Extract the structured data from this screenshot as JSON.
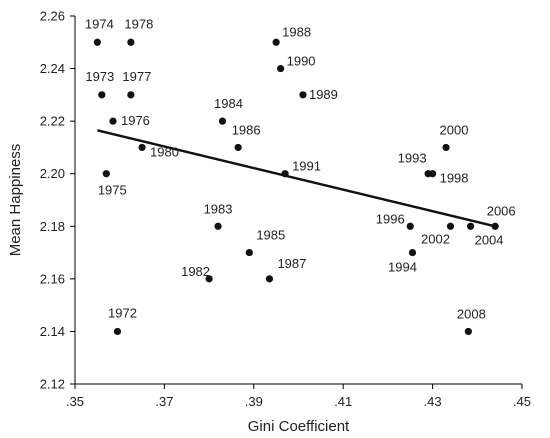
{
  "chart_data": {
    "type": "scatter",
    "xlabel": "Gini Coefficient",
    "ylabel": "Mean Happiness",
    "xlim": [
      0.35,
      0.45
    ],
    "ylim": [
      2.12,
      2.26
    ],
    "x_ticks": [
      0.35,
      0.37,
      0.39,
      0.41,
      0.43,
      0.45
    ],
    "x_tick_labels": [
      ".35",
      ".37",
      ".39",
      ".41",
      ".43",
      ".45"
    ],
    "y_ticks": [
      2.12,
      2.14,
      2.16,
      2.18,
      2.2,
      2.22,
      2.24,
      2.26
    ],
    "y_tick_labels": [
      "2.12",
      "2.14",
      "2.16",
      "2.18",
      "2.20",
      "2.22",
      "2.24",
      "2.26"
    ],
    "grid": false,
    "points": [
      {
        "label": "1974",
        "x": 0.355,
        "y": 2.25
      },
      {
        "label": "1978",
        "x": 0.3625,
        "y": 2.25
      },
      {
        "label": "1973",
        "x": 0.356,
        "y": 2.23
      },
      {
        "label": "1977",
        "x": 0.3625,
        "y": 2.23
      },
      {
        "label": "1976",
        "x": 0.3585,
        "y": 2.22
      },
      {
        "label": "1980",
        "x": 0.365,
        "y": 2.21
      },
      {
        "label": "1975",
        "x": 0.357,
        "y": 2.2
      },
      {
        "label": "1972",
        "x": 0.3595,
        "y": 2.14
      },
      {
        "label": "1984",
        "x": 0.383,
        "y": 2.22
      },
      {
        "label": "1986",
        "x": 0.3865,
        "y": 2.21
      },
      {
        "label": "1988",
        "x": 0.395,
        "y": 2.25
      },
      {
        "label": "1990",
        "x": 0.396,
        "y": 2.24
      },
      {
        "label": "1989",
        "x": 0.401,
        "y": 2.23
      },
      {
        "label": "1991",
        "x": 0.397,
        "y": 2.2
      },
      {
        "label": "1983",
        "x": 0.382,
        "y": 2.18
      },
      {
        "label": "1985",
        "x": 0.389,
        "y": 2.17
      },
      {
        "label": "1982",
        "x": 0.38,
        "y": 2.16
      },
      {
        "label": "1987",
        "x": 0.3935,
        "y": 2.16
      },
      {
        "label": "2000",
        "x": 0.433,
        "y": 2.21
      },
      {
        "label": "1993",
        "x": 0.429,
        "y": 2.2
      },
      {
        "label": "1998",
        "x": 0.43,
        "y": 2.2
      },
      {
        "label": "1996",
        "x": 0.425,
        "y": 2.18
      },
      {
        "label": "2002",
        "x": 0.434,
        "y": 2.18
      },
      {
        "label": "2004",
        "x": 0.4385,
        "y": 2.18
      },
      {
        "label": "2006",
        "x": 0.444,
        "y": 2.18
      },
      {
        "label": "1994",
        "x": 0.4255,
        "y": 2.17
      },
      {
        "label": "2008",
        "x": 0.438,
        "y": 2.14
      }
    ],
    "trend_line": {
      "x": [
        0.355,
        0.444
      ],
      "y": [
        2.2165,
        2.18
      ]
    }
  }
}
